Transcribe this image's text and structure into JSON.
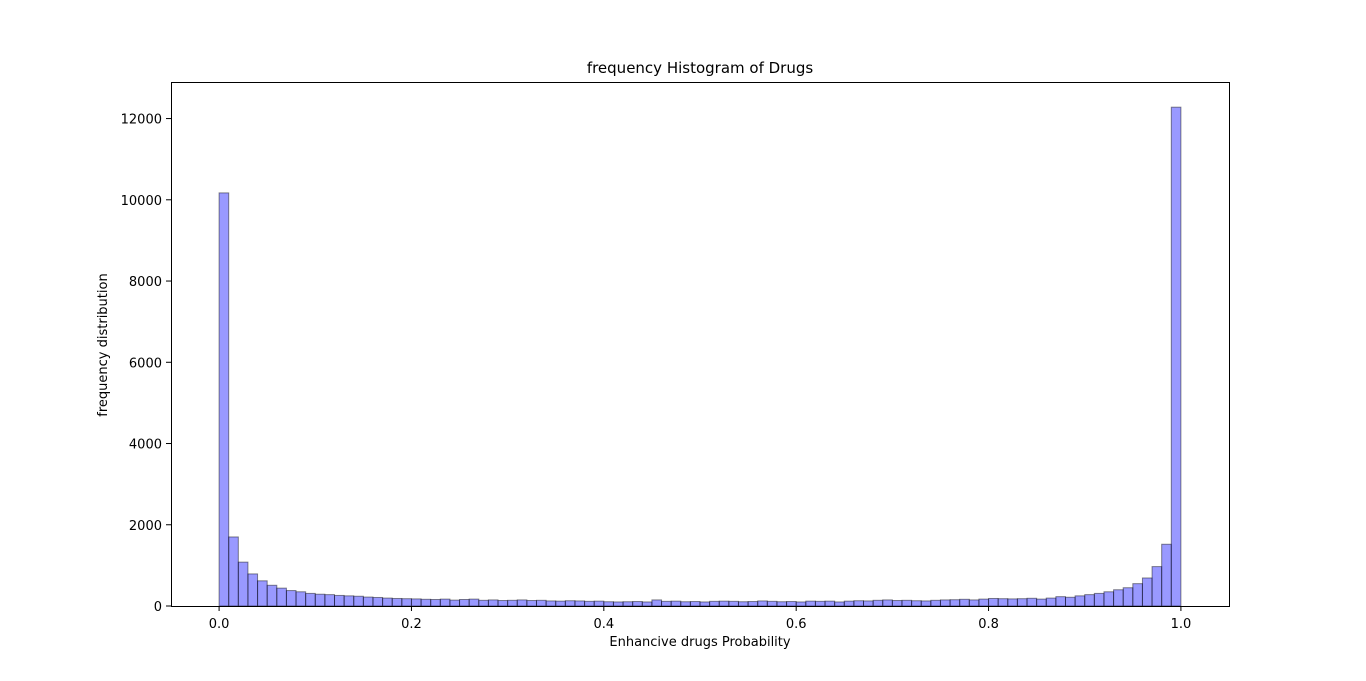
{
  "chart_data": {
    "type": "bar",
    "title": "frequency Histogram of Drugs",
    "xlabel": "Enhancive drugs Probability",
    "ylabel": "frequency distribution",
    "xlim": [
      -0.05,
      1.05
    ],
    "ylim": [
      0,
      12900
    ],
    "xticks": [
      0.0,
      0.2,
      0.4,
      0.6,
      0.8,
      1.0
    ],
    "xtick_labels": [
      "0.0",
      "0.2",
      "0.4",
      "0.6",
      "0.8",
      "1.0"
    ],
    "yticks": [
      0,
      2000,
      4000,
      6000,
      8000,
      10000,
      12000
    ],
    "ytick_labels": [
      "0",
      "2000",
      "4000",
      "6000",
      "8000",
      "10000",
      "12000"
    ],
    "bin_start": 0.0,
    "bin_end": 1.0,
    "bar_color": "#0000ff",
    "edge_color": "#000000",
    "grid": false,
    "counts": [
      10170,
      1700,
      1080,
      790,
      620,
      510,
      440,
      380,
      350,
      310,
      290,
      280,
      260,
      250,
      240,
      220,
      210,
      195,
      185,
      180,
      175,
      165,
      160,
      170,
      145,
      160,
      170,
      140,
      150,
      135,
      140,
      150,
      135,
      140,
      125,
      120,
      130,
      125,
      115,
      120,
      105,
      100,
      105,
      110,
      100,
      150,
      115,
      120,
      105,
      110,
      100,
      115,
      120,
      115,
      105,
      110,
      125,
      115,
      105,
      110,
      100,
      120,
      115,
      120,
      100,
      120,
      130,
      125,
      140,
      150,
      135,
      140,
      130,
      125,
      140,
      150,
      155,
      165,
      150,
      170,
      185,
      180,
      175,
      180,
      190,
      170,
      195,
      230,
      215,
      250,
      280,
      310,
      350,
      400,
      450,
      550,
      690,
      970,
      1520,
      12280
    ]
  }
}
